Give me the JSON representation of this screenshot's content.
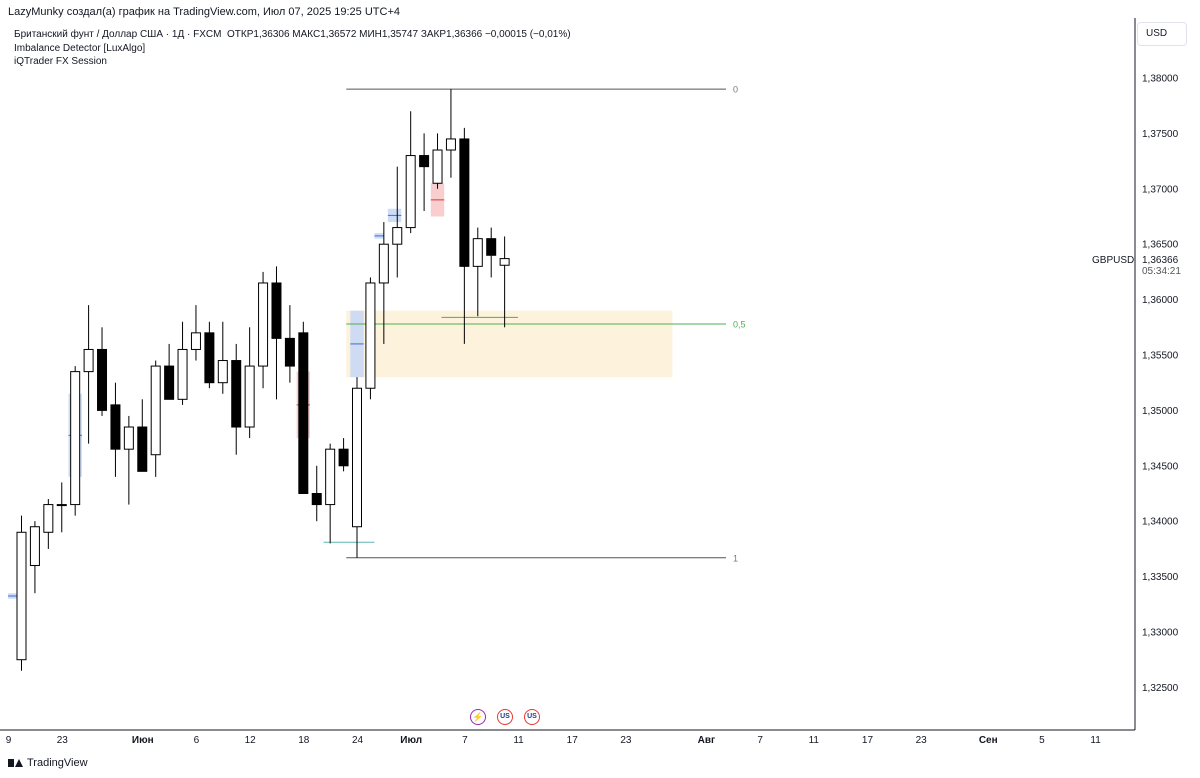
{
  "attribution": "LazyMunky создал(а) график на TradingView.com, Июл 07, 2025 19:25 UTC+4",
  "legend": {
    "instrument": "Британский фунт / Доллар США · 1Д · FXCM",
    "ohlc": "ОТКР1,36306  МАКС1,36572  МИН1,35747  ЗАКР1,36366  −0,00015 (−0,01%)",
    "indicators": [
      "Imbalance Detector [LuxAlgo]",
      "iQTrader FX Session"
    ]
  },
  "currency": "USD",
  "footer": {
    "brand": "TradingView"
  },
  "events": [
    {
      "icon": "lightning-icon",
      "label": "⚡"
    },
    {
      "icon": "us-flag-icon",
      "label": "US"
    },
    {
      "icon": "us-flag-icon",
      "label": "US"
    }
  ],
  "colors": {
    "up_body": "#ffffff",
    "down_body": "#000000",
    "wick": "#000000",
    "bull_imbalance": "#c5d6f7",
    "bear_imbalance": "#f7c5c5",
    "zone": "#fdf3dc",
    "fib_line": "#555555",
    "mid_line": "#4caf50"
  },
  "chart_data": {
    "type": "candlestick",
    "symbol": "GBPUSD",
    "last_price": "1,36366",
    "countdown": "05:34:21",
    "ylim": [
      1.3225,
      1.3845
    ],
    "y_ticks": [
      {
        "v": 1.325,
        "label": "1,32500"
      },
      {
        "v": 1.33,
        "label": "1,33000"
      },
      {
        "v": 1.335,
        "label": "1,33500"
      },
      {
        "v": 1.34,
        "label": "1,34000"
      },
      {
        "v": 1.345,
        "label": "1,34500"
      },
      {
        "v": 1.35,
        "label": "1,35000"
      },
      {
        "v": 1.355,
        "label": "1,35500"
      },
      {
        "v": 1.36,
        "label": "1,36000"
      },
      {
        "v": 1.365,
        "label": "1,36500"
      },
      {
        "v": 1.37,
        "label": "1,37000"
      },
      {
        "v": 1.375,
        "label": "1,37500"
      },
      {
        "v": 1.38,
        "label": "1,38000"
      }
    ],
    "x_ticks": [
      {
        "i": -1,
        "label": "9"
      },
      {
        "i": 3,
        "label": "23"
      },
      {
        "i": 9,
        "label": "Июн"
      },
      {
        "i": 13,
        "label": "6"
      },
      {
        "i": 17,
        "label": "12"
      },
      {
        "i": 21,
        "label": "18"
      },
      {
        "i": 25,
        "label": "24"
      },
      {
        "i": 29,
        "label": "Июл"
      },
      {
        "i": 33,
        "label": "7"
      },
      {
        "i": 37,
        "label": "11"
      },
      {
        "i": 41,
        "label": "17"
      },
      {
        "i": 45,
        "label": "23"
      },
      {
        "i": 51,
        "label": "Авг"
      },
      {
        "i": 55,
        "label": "7"
      },
      {
        "i": 59,
        "label": "11"
      },
      {
        "i": 63,
        "label": "17"
      },
      {
        "i": 67,
        "label": "23"
      },
      {
        "i": 72,
        "label": "Сен"
      },
      {
        "i": 76,
        "label": "5"
      },
      {
        "i": 80,
        "label": "11"
      }
    ],
    "candles": [
      {
        "o": 1.3275,
        "h": 1.3405,
        "l": 1.3265,
        "c": 1.339
      },
      {
        "o": 1.336,
        "h": 1.34,
        "l": 1.3335,
        "c": 1.3395
      },
      {
        "o": 1.339,
        "h": 1.342,
        "l": 1.3375,
        "c": 1.3415
      },
      {
        "o": 1.3415,
        "h": 1.3435,
        "l": 1.339,
        "c": 1.3415
      },
      {
        "o": 1.3415,
        "h": 1.354,
        "l": 1.3405,
        "c": 1.3535
      },
      {
        "o": 1.3535,
        "h": 1.3595,
        "l": 1.347,
        "c": 1.3555
      },
      {
        "o": 1.3555,
        "h": 1.3575,
        "l": 1.3495,
        "c": 1.35
      },
      {
        "o": 1.3505,
        "h": 1.3525,
        "l": 1.344,
        "c": 1.3465
      },
      {
        "o": 1.3465,
        "h": 1.3495,
        "l": 1.3415,
        "c": 1.3485
      },
      {
        "o": 1.3485,
        "h": 1.351,
        "l": 1.3445,
        "c": 1.3445
      },
      {
        "o": 1.346,
        "h": 1.3545,
        "l": 1.344,
        "c": 1.354
      },
      {
        "o": 1.354,
        "h": 1.356,
        "l": 1.3515,
        "c": 1.351
      },
      {
        "o": 1.351,
        "h": 1.358,
        "l": 1.3505,
        "c": 1.3555
      },
      {
        "o": 1.3555,
        "h": 1.3595,
        "l": 1.3545,
        "c": 1.357
      },
      {
        "o": 1.357,
        "h": 1.358,
        "l": 1.352,
        "c": 1.3525
      },
      {
        "o": 1.3525,
        "h": 1.358,
        "l": 1.3515,
        "c": 1.3545
      },
      {
        "o": 1.3545,
        "h": 1.356,
        "l": 1.346,
        "c": 1.3485
      },
      {
        "o": 1.3485,
        "h": 1.3575,
        "l": 1.3475,
        "c": 1.354
      },
      {
        "o": 1.354,
        "h": 1.3625,
        "l": 1.352,
        "c": 1.3615
      },
      {
        "o": 1.3615,
        "h": 1.363,
        "l": 1.351,
        "c": 1.3565
      },
      {
        "o": 1.3565,
        "h": 1.3595,
        "l": 1.3525,
        "c": 1.354
      },
      {
        "o": 1.357,
        "h": 1.358,
        "l": 1.343,
        "c": 1.3425
      },
      {
        "o": 1.3425,
        "h": 1.345,
        "l": 1.34,
        "c": 1.3415
      },
      {
        "o": 1.3415,
        "h": 1.347,
        "l": 1.338,
        "c": 1.3465
      },
      {
        "o": 1.3465,
        "h": 1.3475,
        "l": 1.3445,
        "c": 1.345
      },
      {
        "o": 1.3395,
        "h": 1.353,
        "l": 1.3367,
        "c": 1.352
      },
      {
        "o": 1.352,
        "h": 1.362,
        "l": 1.351,
        "c": 1.3615
      },
      {
        "o": 1.3615,
        "h": 1.367,
        "l": 1.356,
        "c": 1.365
      },
      {
        "o": 1.365,
        "h": 1.372,
        "l": 1.362,
        "c": 1.3665
      },
      {
        "o": 1.3665,
        "h": 1.377,
        "l": 1.366,
        "c": 1.373
      },
      {
        "o": 1.373,
        "h": 1.375,
        "l": 1.368,
        "c": 1.372
      },
      {
        "o": 1.3705,
        "h": 1.375,
        "l": 1.37,
        "c": 1.3735
      },
      {
        "o": 1.3735,
        "h": 1.379,
        "l": 1.371,
        "c": 1.3745
      },
      {
        "o": 1.3745,
        "h": 1.3755,
        "l": 1.356,
        "c": 1.363
      },
      {
        "o": 1.363,
        "h": 1.3665,
        "l": 1.3585,
        "c": 1.3655
      },
      {
        "o": 1.3655,
        "h": 1.3665,
        "l": 1.362,
        "c": 1.364
      },
      {
        "o": 1.3631,
        "h": 1.3657,
        "l": 1.3575,
        "c": 1.3637
      }
    ],
    "imbalances": [
      {
        "i0": 3.5,
        "i1": 4.5,
        "top": 1.3515,
        "bottom": 1.344,
        "type": "bull"
      },
      {
        "i0": 20.5,
        "i1": 21.5,
        "top": 1.3535,
        "bottom": 1.3475,
        "type": "bear"
      },
      {
        "i0": 24.5,
        "i1": 25.5,
        "top": 1.359,
        "bottom": 1.353,
        "type": "bull"
      },
      {
        "i0": 26.3,
        "i1": 27.0,
        "top": 1.366,
        "bottom": 1.3655,
        "type": "bull"
      },
      {
        "i0": 27.3,
        "i1": 28.3,
        "top": 1.3682,
        "bottom": 1.367,
        "type": "bull"
      },
      {
        "i0": 30.5,
        "i1": 31.5,
        "top": 1.3705,
        "bottom": 1.3675,
        "type": "bear"
      },
      {
        "i0": -1,
        "i1": 0,
        "top": 1.3335,
        "bottom": 1.333,
        "type": "bull"
      }
    ],
    "zone": {
      "i0": 24.2,
      "i1": 48.5,
      "top": 1.359,
      "bottom": 1.353
    },
    "fib": [
      {
        "v": 1.379,
        "label": "0"
      },
      {
        "v": 1.3578,
        "label": "0,5"
      },
      {
        "v": 1.3367,
        "label": "1"
      }
    ],
    "fib_range": {
      "i0": 24.2,
      "i1": 52.5
    },
    "extra_lines": [
      {
        "i0": 22.5,
        "i1": 26.3,
        "v": 1.3381,
        "color": "#5fb8b0"
      },
      {
        "i0": 31.3,
        "i1": 37,
        "v": 1.3584,
        "color": "#4caf50"
      }
    ]
  }
}
